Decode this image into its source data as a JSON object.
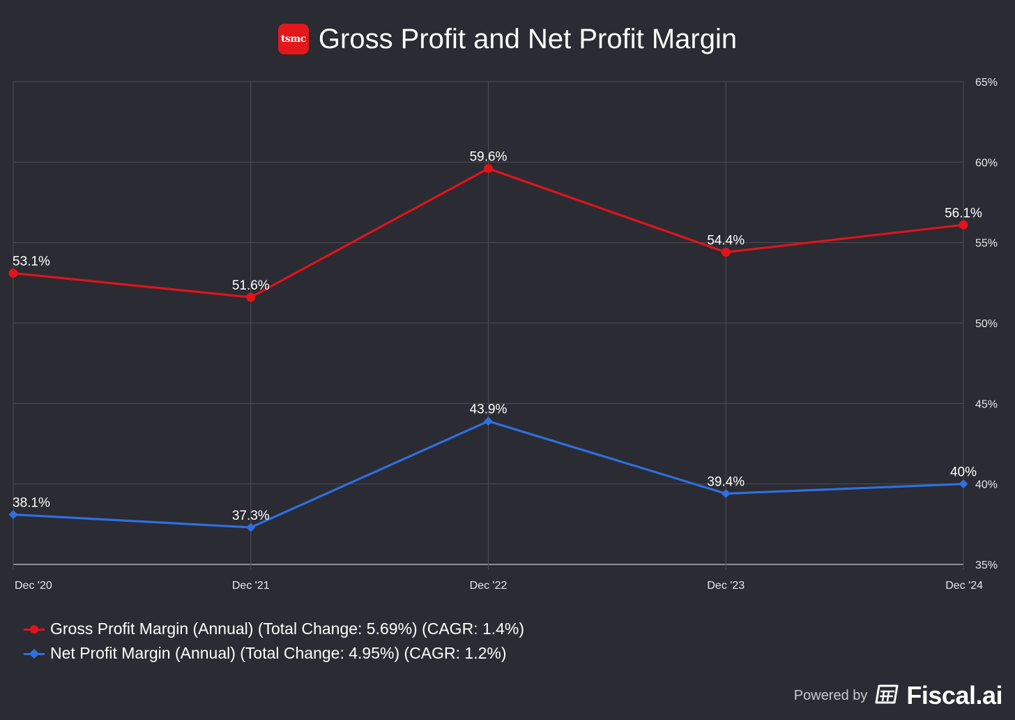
{
  "header": {
    "logo_text": "tsmc",
    "title": "Gross Profit and Net Profit Margin"
  },
  "chart_data": {
    "type": "line",
    "title": "Gross Profit and Net Profit Margin",
    "categories": [
      "Dec '20",
      "Dec '21",
      "Dec '22",
      "Dec '23",
      "Dec '24"
    ],
    "ylim": [
      35,
      65
    ],
    "yticks": [
      35,
      40,
      45,
      50,
      55,
      60,
      65
    ],
    "ytick_labels": [
      "35%",
      "40%",
      "45%",
      "50%",
      "55%",
      "60%",
      "65%"
    ],
    "y_axis_side": "right",
    "grid": true,
    "series": [
      {
        "name": "Gross Profit Margin (Annual)",
        "color": "#e0141a",
        "marker": "circle",
        "values": [
          53.1,
          51.6,
          59.6,
          54.4,
          56.1
        ],
        "labels": [
          "53.1%",
          "51.6%",
          "59.6%",
          "54.4%",
          "56.1%"
        ]
      },
      {
        "name": "Net Profit Margin (Annual)",
        "color": "#2f6fe0",
        "marker": "diamond",
        "values": [
          38.1,
          37.3,
          43.9,
          39.4,
          40.0
        ],
        "labels": [
          "38.1%",
          "37.3%",
          "43.9%",
          "39.4%",
          "40%"
        ]
      }
    ]
  },
  "legend": {
    "items": [
      {
        "label": "Gross Profit Margin (Annual) (Total Change: 5.69%) (CAGR: 1.4%)",
        "color": "#e0141a"
      },
      {
        "label": "Net Profit Margin (Annual) (Total Change: 4.95%) (CAGR: 1.2%)",
        "color": "#2f6fe0"
      }
    ]
  },
  "footer": {
    "powered_by": "Powered by",
    "brand": "Fiscal.ai",
    "brand_icon": "fiscal-logo-icon"
  }
}
